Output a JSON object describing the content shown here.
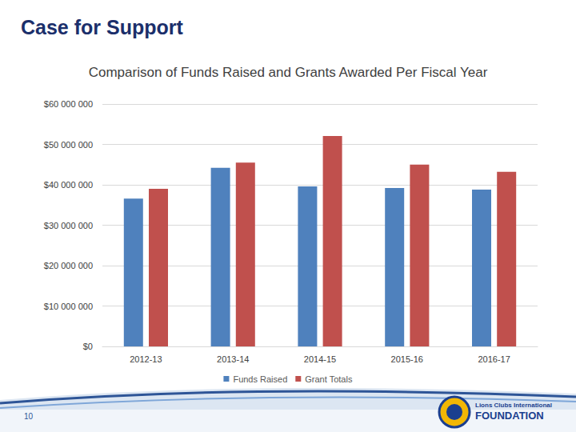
{
  "slide_title": "Case for Support",
  "page_number": "10",
  "logo_text": [
    "Lions Clubs International",
    "FOUNDATION"
  ],
  "chart_data": {
    "type": "bar",
    "title": "Comparison of Funds Raised and Grants Awarded Per Fiscal Year",
    "categories": [
      "2012-13",
      "2013-14",
      "2014-15",
      "2015-16",
      "2016-17"
    ],
    "series": [
      {
        "name": "Funds Raised",
        "color": "#4f81bd",
        "values": [
          36600000,
          44200000,
          39600000,
          39200000,
          38800000
        ]
      },
      {
        "name": "Grant Totals",
        "color": "#c0504d",
        "values": [
          39000000,
          45500000,
          52100000,
          45000000,
          43200000
        ]
      }
    ],
    "ylim": [
      0,
      60000000
    ],
    "yticks": [
      {
        "value": 0,
        "label": "$0"
      },
      {
        "value": 10000000,
        "label": "$10 000 000"
      },
      {
        "value": 20000000,
        "label": "$20 000 000"
      },
      {
        "value": 30000000,
        "label": "$30 000 000"
      },
      {
        "value": 40000000,
        "label": "$40 000 000"
      },
      {
        "value": 50000000,
        "label": "$50 000 000"
      },
      {
        "value": 60000000,
        "label": "$60 000 000"
      }
    ],
    "grid": true,
    "legend": "bottom"
  }
}
